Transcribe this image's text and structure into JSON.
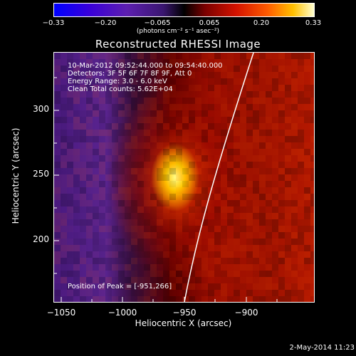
{
  "colorbar": {
    "ticks": [
      "−0.33",
      "−0.20",
      "−0.065",
      "0.065",
      "0.20",
      "0.33"
    ],
    "unit_label": "(photons cm⁻² s⁻¹ asec⁻²)"
  },
  "title": "Reconstructed RHESSI Image",
  "info": {
    "time": "10-Mar-2012 09:52:44.000 to 09:54:40.000",
    "detectors": "Detectors: 3F 5F 6F 7F 8F 9F, Att 0",
    "energy": "Energy Range: 3.0 - 6.0 keV",
    "clean": "Clean     Total counts: 5.62E+04",
    "peak": "Position of Peak = [-951,266]"
  },
  "axes": {
    "xlabel": "Heliocentric X (arcsec)",
    "ylabel": "Heliocentric Y (arcsec)",
    "xticks": [
      "−1050",
      "−1000",
      "−950",
      "−900"
    ],
    "yticks": [
      "300",
      "250",
      "200"
    ]
  },
  "date_stamp": "2-May-2014 11:23",
  "colors": {
    "background": "#000000",
    "limb_line": "#ffffff",
    "text": "#ffffff"
  }
}
